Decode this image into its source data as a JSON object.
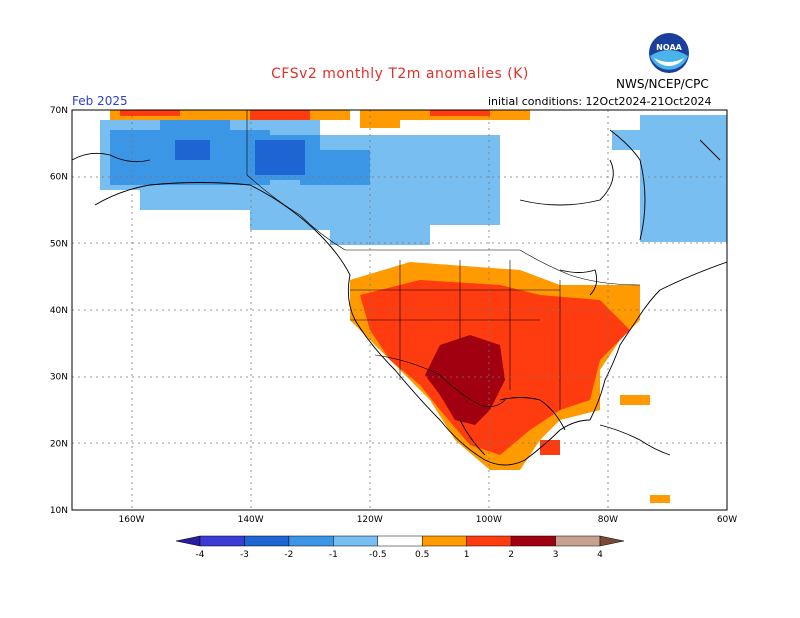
{
  "header": {
    "title": "CFSv2 monthly T2m anomalies (K)",
    "month": "Feb 2025",
    "initial_conditions": "initial conditions: 12Oct2024-21Oct2024",
    "org": "NWS/NCEP/CPC",
    "logo_text": "NOAA"
  },
  "map": {
    "lat_labels": [
      "70N",
      "60N",
      "50N",
      "40N",
      "30N",
      "20N",
      "10N"
    ],
    "lon_labels": [
      "160W",
      "140W",
      "120W",
      "100W",
      "80W",
      "60W"
    ],
    "lon_range": [
      -170,
      -60
    ],
    "lat_range": [
      10,
      70
    ],
    "grid": true
  },
  "colorbar": {
    "labels": [
      "-4",
      "-3",
      "-2",
      "-1",
      "-0.5",
      "0.5",
      "1",
      "2",
      "3",
      "4"
    ],
    "colors": [
      "#2a1c9e",
      "#3b3bd6",
      "#1e64d2",
      "#3c96e6",
      "#78bef0",
      "#ffffff",
      "#ff9a00",
      "#ff3c10",
      "#a00010",
      "#c8a090",
      "#7a4a38"
    ],
    "categories": [
      "< -4",
      "-4 to -3",
      "-3 to -2",
      "-2 to -1",
      "-1 to -0.5",
      "-0.5 to 0.5",
      "0.5 to 1",
      "1 to 2",
      "2 to 3",
      "3 to 4",
      "> 4"
    ]
  },
  "colors": {
    "cold_weak": "#78bef0",
    "cold_moderate": "#3c96e6",
    "cold_strong": "#1e64d2",
    "warm_weak": "#ff9a00",
    "warm_moderate": "#ff3c10",
    "warm_strong": "#a00010",
    "title": "#e0302a",
    "month_label": "#2a3fd8"
  }
}
